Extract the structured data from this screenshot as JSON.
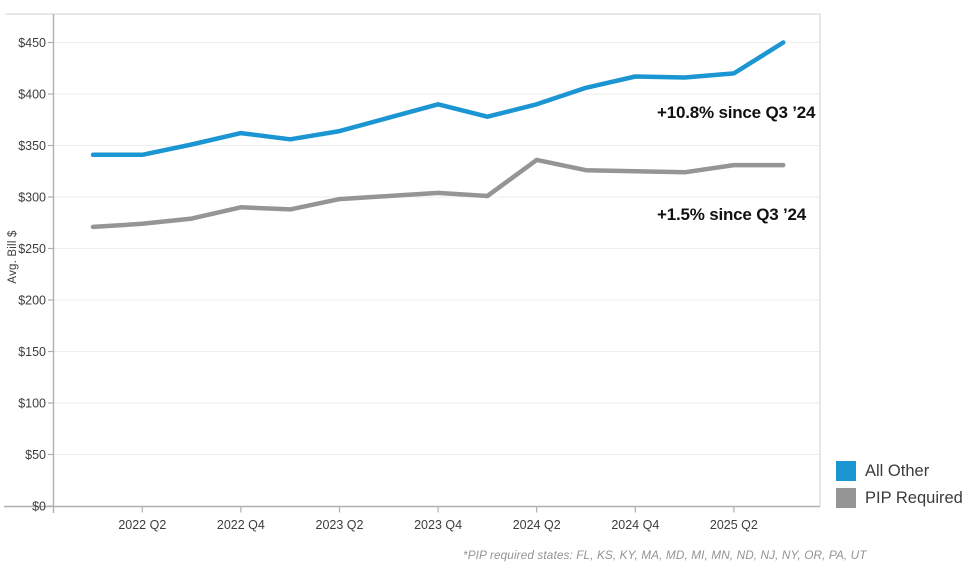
{
  "chart_data": {
    "type": "line",
    "title": "",
    "xlabel": "",
    "ylabel": "Avg. Bill $",
    "ylim": [
      0,
      478
    ],
    "ytick_step": 50,
    "ytick_prefix": "$",
    "grid": true,
    "legend_position": "right-bottom",
    "categories": [
      "2022 Q1",
      "2022 Q2",
      "2022 Q3",
      "2022 Q4",
      "2023 Q1",
      "2023 Q2",
      "2023 Q3",
      "2023 Q4",
      "2024 Q1",
      "2024 Q2",
      "2024 Q3",
      "2024 Q4",
      "2025 Q1",
      "2025 Q2",
      "2025 Q3"
    ],
    "x_axis_labels": [
      "2022 Q2",
      "2022 Q4",
      "2023 Q2",
      "2023 Q4",
      "2024 Q2",
      "2024 Q4",
      "2025 Q2"
    ],
    "series": [
      {
        "name": "All Other",
        "color": "#1b96d2",
        "values": [
          341,
          341,
          351,
          362,
          356,
          364,
          377,
          390,
          378,
          390,
          406,
          417,
          416,
          420,
          450
        ]
      },
      {
        "name": "PIP Required",
        "color": "#959595",
        "values": [
          271,
          274,
          279,
          290,
          288,
          298,
          301,
          304,
          301,
          336,
          326,
          325,
          324,
          331,
          331
        ]
      }
    ],
    "annotations": [
      {
        "text": "+10.8% since Q3 ’24",
        "series": "All Other"
      },
      {
        "text": "+1.5% since Q3 ’24",
        "series": "PIP Required"
      }
    ],
    "footnote": "*PIP required states: FL, KS, KY, MA, MD, MI, MN, ND, NJ, NY, OR, PA, UT"
  },
  "colors": {
    "grid": "#ededed",
    "plot_border": "#d9d9d9",
    "axis": "#b0b0b0",
    "tick_label": "#3d3d3d"
  }
}
